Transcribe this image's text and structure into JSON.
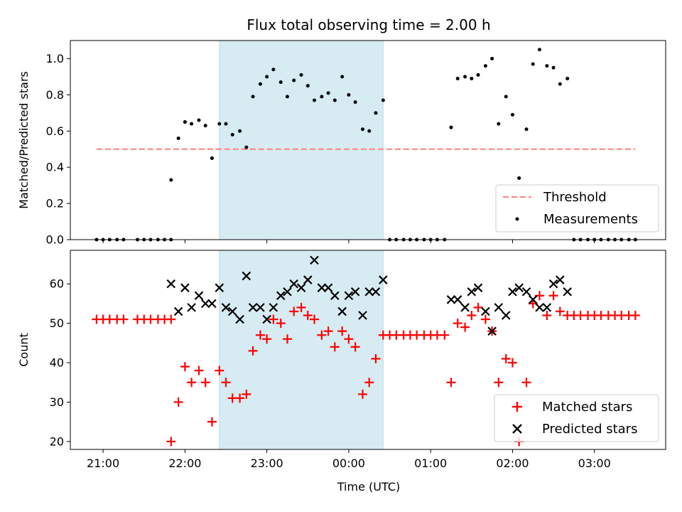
{
  "chart_data": {
    "title": "Flux total observing time = 2.00 h",
    "xlabel": "Time (UTC)",
    "x_ticks": [
      "21:00",
      "22:00",
      "23:00",
      "00:00",
      "01:00",
      "02:00",
      "03:00"
    ],
    "x_tick_hours": [
      21,
      22,
      23,
      24,
      25,
      26,
      27
    ],
    "xlim_hours": [
      20.6,
      27.87
    ],
    "highlight_span_hours": [
      22.42,
      24.42
    ],
    "highlight_color": "#add8e6",
    "panels": [
      {
        "type": "scatter",
        "ylabel": "Matched/Predicted stars",
        "ylim": [
          0,
          1.1
        ],
        "y_ticks": [
          "0.0",
          "0.2",
          "0.4",
          "0.6",
          "0.8",
          "1.0"
        ],
        "y_tick_values": [
          0,
          0.2,
          0.4,
          0.6,
          0.8,
          1.0
        ],
        "legend": [
          "Threshold",
          "Measurements"
        ],
        "threshold": {
          "name": "Threshold",
          "value": 0.5,
          "x_range_hours": [
            20.92,
            27.5
          ],
          "color": "#ff7f7f",
          "style": "dashed"
        },
        "series": [
          {
            "name": "Measurements",
            "color": "#000000",
            "marker": "dot",
            "points": [
              [
                20.92,
                0
              ],
              [
                21.0,
                0
              ],
              [
                21.08,
                0
              ],
              [
                21.17,
                0
              ],
              [
                21.25,
                0
              ],
              [
                21.42,
                0
              ],
              [
                21.5,
                0
              ],
              [
                21.58,
                0
              ],
              [
                21.67,
                0
              ],
              [
                21.75,
                0
              ],
              [
                21.83,
                0
              ],
              [
                21.83,
                0.33
              ],
              [
                21.92,
                0.56
              ],
              [
                22.0,
                0.65
              ],
              [
                22.08,
                0.64
              ],
              [
                22.17,
                0.66
              ],
              [
                22.25,
                0.63
              ],
              [
                22.33,
                0.45
              ],
              [
                22.42,
                0.64
              ],
              [
                22.5,
                0.64
              ],
              [
                22.58,
                0.58
              ],
              [
                22.67,
                0.6
              ],
              [
                22.75,
                0.51
              ],
              [
                22.83,
                0.79
              ],
              [
                22.92,
                0.86
              ],
              [
                23.0,
                0.9
              ],
              [
                23.08,
                0.94
              ],
              [
                23.17,
                0.87
              ],
              [
                23.25,
                0.79
              ],
              [
                23.33,
                0.88
              ],
              [
                23.42,
                0.91
              ],
              [
                23.5,
                0.85
              ],
              [
                23.58,
                0.77
              ],
              [
                23.67,
                0.79
              ],
              [
                23.75,
                0.81
              ],
              [
                23.83,
                0.77
              ],
              [
                23.92,
                0.9
              ],
              [
                24.0,
                0.8
              ],
              [
                24.08,
                0.76
              ],
              [
                24.17,
                0.61
              ],
              [
                24.25,
                0.6
              ],
              [
                24.33,
                0.7
              ],
              [
                24.42,
                0.77
              ],
              [
                24.5,
                0
              ],
              [
                24.58,
                0
              ],
              [
                24.67,
                0
              ],
              [
                24.75,
                0
              ],
              [
                24.83,
                0
              ],
              [
                24.92,
                0
              ],
              [
                25.0,
                0
              ],
              [
                25.08,
                0
              ],
              [
                25.17,
                0
              ],
              [
                25.25,
                0.62
              ],
              [
                25.33,
                0.89
              ],
              [
                25.42,
                0.9
              ],
              [
                25.5,
                0.89
              ],
              [
                25.58,
                0.91
              ],
              [
                25.67,
                0.96
              ],
              [
                25.75,
                1.0
              ],
              [
                25.83,
                0.64
              ],
              [
                25.92,
                0.79
              ],
              [
                26.0,
                0.69
              ],
              [
                26.08,
                0.34
              ],
              [
                26.17,
                0.61
              ],
              [
                26.25,
                0.97
              ],
              [
                26.33,
                1.05
              ],
              [
                26.42,
                0.96
              ],
              [
                26.5,
                0.95
              ],
              [
                26.58,
                0.86
              ],
              [
                26.67,
                0.89
              ],
              [
                26.75,
                0
              ],
              [
                26.83,
                0
              ],
              [
                26.92,
                0
              ],
              [
                27.0,
                0
              ],
              [
                27.08,
                0
              ],
              [
                27.17,
                0
              ],
              [
                27.25,
                0
              ],
              [
                27.33,
                0
              ],
              [
                27.42,
                0
              ],
              [
                27.5,
                0
              ]
            ]
          }
        ]
      },
      {
        "type": "scatter",
        "ylabel": "Count",
        "ylim": [
          18,
          68.5
        ],
        "y_ticks": [
          "20",
          "30",
          "40",
          "50",
          "60"
        ],
        "y_tick_values": [
          20,
          30,
          40,
          50,
          60
        ],
        "legend": [
          "Matched stars",
          "Predicted stars"
        ],
        "series": [
          {
            "name": "Matched stars",
            "color": "#ff0000",
            "marker": "plus",
            "points": [
              [
                20.92,
                51
              ],
              [
                21.0,
                51
              ],
              [
                21.08,
                51
              ],
              [
                21.17,
                51
              ],
              [
                21.25,
                51
              ],
              [
                21.42,
                51
              ],
              [
                21.5,
                51
              ],
              [
                21.58,
                51
              ],
              [
                21.67,
                51
              ],
              [
                21.75,
                51
              ],
              [
                21.83,
                51
              ],
              [
                21.83,
                20
              ],
              [
                21.92,
                30
              ],
              [
                22.0,
                39
              ],
              [
                22.08,
                35
              ],
              [
                22.17,
                38
              ],
              [
                22.25,
                35
              ],
              [
                22.33,
                25
              ],
              [
                22.42,
                38
              ],
              [
                22.5,
                35
              ],
              [
                22.58,
                31
              ],
              [
                22.67,
                31
              ],
              [
                22.75,
                32
              ],
              [
                22.83,
                43
              ],
              [
                22.92,
                47
              ],
              [
                23.0,
                46
              ],
              [
                23.08,
                51
              ],
              [
                23.17,
                50
              ],
              [
                23.25,
                46
              ],
              [
                23.33,
                53
              ],
              [
                23.42,
                54
              ],
              [
                23.5,
                52
              ],
              [
                23.58,
                51
              ],
              [
                23.67,
                47
              ],
              [
                23.75,
                48
              ],
              [
                23.83,
                44
              ],
              [
                23.92,
                48
              ],
              [
                24.0,
                46
              ],
              [
                24.08,
                44
              ],
              [
                24.17,
                32
              ],
              [
                24.25,
                35
              ],
              [
                24.33,
                41
              ],
              [
                24.42,
                47
              ],
              [
                24.5,
                47
              ],
              [
                24.58,
                47
              ],
              [
                24.67,
                47
              ],
              [
                24.75,
                47
              ],
              [
                24.83,
                47
              ],
              [
                24.92,
                47
              ],
              [
                25.0,
                47
              ],
              [
                25.08,
                47
              ],
              [
                25.17,
                47
              ],
              [
                25.25,
                35
              ],
              [
                25.33,
                50
              ],
              [
                25.42,
                49
              ],
              [
                25.5,
                52
              ],
              [
                25.58,
                54
              ],
              [
                25.67,
                51
              ],
              [
                25.75,
                48
              ],
              [
                25.83,
                35
              ],
              [
                25.92,
                41
              ],
              [
                26.0,
                40
              ],
              [
                26.08,
                20
              ],
              [
                26.17,
                35
              ],
              [
                26.25,
                55
              ],
              [
                26.33,
                57
              ],
              [
                26.42,
                52
              ],
              [
                26.5,
                57
              ],
              [
                26.58,
                53
              ],
              [
                26.67,
                52
              ],
              [
                26.75,
                52
              ],
              [
                26.83,
                52
              ],
              [
                26.92,
                52
              ],
              [
                27.0,
                52
              ],
              [
                27.08,
                52
              ],
              [
                27.17,
                52
              ],
              [
                27.25,
                52
              ],
              [
                27.33,
                52
              ],
              [
                27.42,
                52
              ],
              [
                27.5,
                52
              ]
            ]
          },
          {
            "name": "Predicted stars",
            "color": "#000000",
            "marker": "x",
            "points": [
              [
                21.83,
                60
              ],
              [
                21.92,
                53
              ],
              [
                22.0,
                59
              ],
              [
                22.08,
                54
              ],
              [
                22.17,
                57
              ],
              [
                22.25,
                55
              ],
              [
                22.33,
                55
              ],
              [
                22.42,
                59
              ],
              [
                22.5,
                54
              ],
              [
                22.58,
                53
              ],
              [
                22.67,
                51
              ],
              [
                22.75,
                62
              ],
              [
                22.83,
                54
              ],
              [
                22.92,
                54
              ],
              [
                23.0,
                51
              ],
              [
                23.08,
                54
              ],
              [
                23.17,
                57
              ],
              [
                23.25,
                58
              ],
              [
                23.33,
                60
              ],
              [
                23.42,
                59
              ],
              [
                23.5,
                61
              ],
              [
                23.58,
                66
              ],
              [
                23.67,
                59
              ],
              [
                23.75,
                59
              ],
              [
                23.83,
                57
              ],
              [
                23.92,
                53
              ],
              [
                24.0,
                57
              ],
              [
                24.08,
                58
              ],
              [
                24.17,
                52
              ],
              [
                24.25,
                58
              ],
              [
                24.33,
                58
              ],
              [
                24.42,
                61
              ],
              [
                25.25,
                56
              ],
              [
                25.33,
                56
              ],
              [
                25.42,
                54
              ],
              [
                25.5,
                58
              ],
              [
                25.58,
                59
              ],
              [
                25.67,
                53
              ],
              [
                25.75,
                48
              ],
              [
                25.83,
                54
              ],
              [
                25.92,
                52
              ],
              [
                26.0,
                58
              ],
              [
                26.08,
                59
              ],
              [
                26.17,
                58
              ],
              [
                26.25,
                56
              ],
              [
                26.33,
                54
              ],
              [
                26.42,
                54
              ],
              [
                26.5,
                60
              ],
              [
                26.58,
                61
              ],
              [
                26.67,
                58
              ]
            ]
          }
        ]
      }
    ]
  }
}
